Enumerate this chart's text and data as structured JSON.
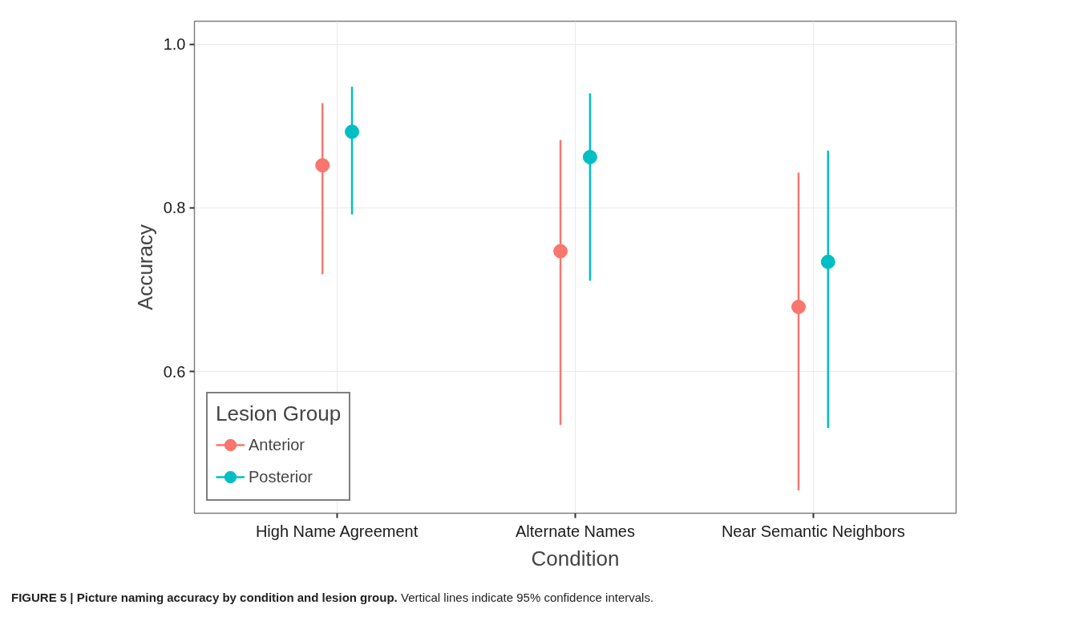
{
  "chart_data": {
    "type": "scatter",
    "xlabel": "Condition",
    "ylabel": "Accuracy",
    "legend_title": "Lesion Group",
    "categories": [
      "High Name Agreement",
      "Alternate Names",
      "Near Semantic Neighbors"
    ],
    "series": [
      {
        "name": "Anterior",
        "color": "#f8766d",
        "values": [
          0.852,
          0.747,
          0.679
        ],
        "errors": [
          [
            0.719,
            0.928
          ],
          [
            0.535,
            0.883
          ],
          [
            0.455,
            0.843
          ]
        ]
      },
      {
        "name": "Posterior",
        "color": "#00bfc4",
        "values": [
          0.893,
          0.862,
          0.734
        ],
        "errors": [
          [
            0.792,
            0.948
          ],
          [
            0.711,
            0.94
          ],
          [
            0.531,
            0.87
          ]
        ]
      }
    ],
    "ylim": [
      0.427,
      1.028
    ],
    "yticks": [
      0.6,
      0.8,
      {
        "value": 1.0,
        "label": "1.0"
      }
    ],
    "grid": true,
    "legend": "bottom left",
    "marker": "circle",
    "annotations": [
      "FIGURE 5 | Picture naming accuracy by condition and lesion group.",
      "Vertical lines indicate 95% confidence intervals."
    ]
  }
}
